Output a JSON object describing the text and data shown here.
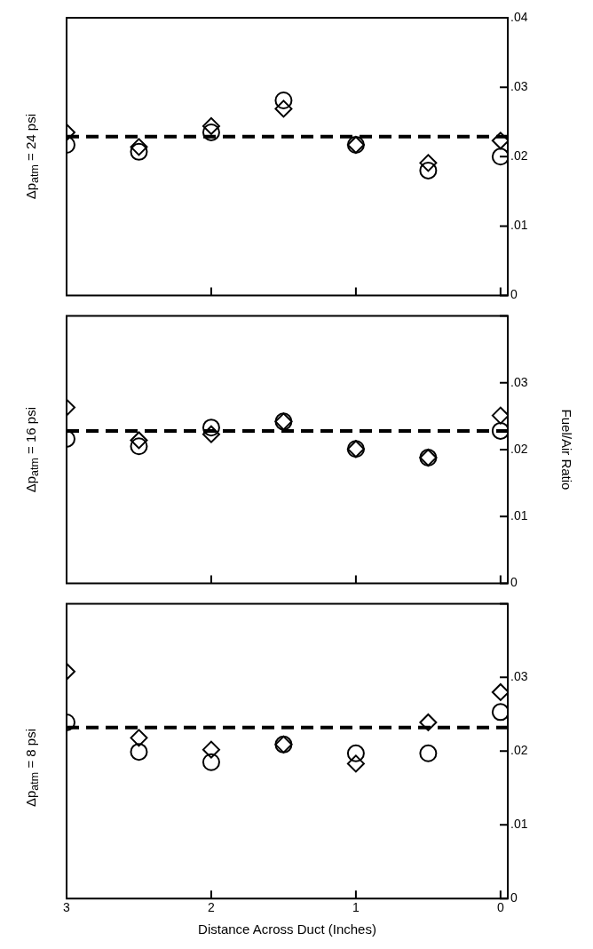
{
  "chart_data": [
    {
      "type": "scatter",
      "title": "Δp$_{atm}$ = 24 psi",
      "x": [
        3,
        2.5,
        2,
        1.5,
        1,
        0.5,
        0
      ],
      "series": [
        {
          "marker": "circle",
          "color": "#000000",
          "values": [
            0.0217,
            0.0207,
            0.0235,
            0.0281,
            0.0217,
            0.018,
            0.02
          ]
        },
        {
          "marker": "diamond",
          "color": "#000000",
          "values": [
            0.0235,
            0.0214,
            0.0244,
            0.0269,
            0.0217,
            0.0191,
            0.0223
          ]
        }
      ],
      "xlim": [
        3,
        -0.05
      ],
      "xticks": [
        3,
        2,
        1,
        0
      ],
      "ylim": [
        0,
        0.04
      ],
      "yticks": [
        {
          "value": 0,
          "label": "0"
        },
        {
          "value": 0.01,
          "label": ".01"
        },
        {
          "value": 0.02,
          "label": ".02"
        },
        {
          "value": 0.03,
          "label": ".03"
        },
        {
          "value": 0.04,
          "label": ".04"
        }
      ],
      "ref_lines": [
        {
          "axis": "y",
          "value": 0.0229,
          "color": "#000000",
          "line_style": "dashed"
        }
      ],
      "tick_labels": "y",
      "grid": false,
      "legend": false
    },
    {
      "type": "scatter",
      "title": "Δp$_{atm}$ = 16 psi",
      "ylabel": "Fuel/Air Ratio",
      "x": [
        3,
        2.5,
        2,
        1.5,
        1,
        0.5,
        0
      ],
      "series": [
        {
          "marker": "circle",
          "color": "#000000",
          "values": [
            0.0216,
            0.0205,
            0.0233,
            0.0242,
            0.0201,
            0.0188,
            0.0228
          ]
        },
        {
          "marker": "diamond",
          "color": "#000000",
          "values": [
            0.0263,
            0.0214,
            0.0223,
            0.0242,
            0.0201,
            0.0188,
            0.0251
          ]
        }
      ],
      "xlim": [
        3,
        -0.05
      ],
      "xticks": [
        3,
        2,
        1,
        0
      ],
      "ylim": [
        0,
        0.04
      ],
      "yticks": [
        {
          "value": 0,
          "label": "0"
        },
        {
          "value": 0.01,
          "label": ".01"
        },
        {
          "value": 0.02,
          "label": ".02"
        },
        {
          "value": 0.03,
          "label": ".03"
        },
        {
          "value": 0.04,
          "label": null
        }
      ],
      "ref_lines": [
        {
          "axis": "y",
          "value": 0.0228,
          "color": "#000000",
          "line_style": "dashed"
        }
      ],
      "tick_labels": "y",
      "grid": false,
      "legend": false
    },
    {
      "type": "scatter",
      "title": "Δp$_{atm}$ = 8 psi",
      "xlabel": "Distance Across Duct (Inches)",
      "x": [
        3,
        2.5,
        2,
        1.5,
        1,
        0.5,
        0
      ],
      "series": [
        {
          "marker": "circle",
          "color": "#000000",
          "values": [
            0.0239,
            0.0199,
            0.0185,
            0.0209,
            0.0197,
            0.0197,
            0.0253
          ]
        },
        {
          "marker": "diamond",
          "color": "#000000",
          "values": [
            0.0308,
            0.0218,
            0.0202,
            0.0209,
            0.0183,
            0.0239,
            0.028
          ]
        }
      ],
      "xlim": [
        3,
        -0.05
      ],
      "xticks": [
        3,
        2,
        1,
        0
      ],
      "ylim": [
        0,
        0.04
      ],
      "yticks": [
        {
          "value": 0,
          "label": "0"
        },
        {
          "value": 0.01,
          "label": ".01"
        },
        {
          "value": 0.02,
          "label": ".02"
        },
        {
          "value": 0.03,
          "label": ".03"
        },
        {
          "value": 0.04,
          "label": null
        }
      ],
      "ref_lines": [
        {
          "axis": "y",
          "value": 0.0232,
          "color": "#000000",
          "line_style": "dashed"
        }
      ],
      "grid": false,
      "legend": false
    }
  ]
}
